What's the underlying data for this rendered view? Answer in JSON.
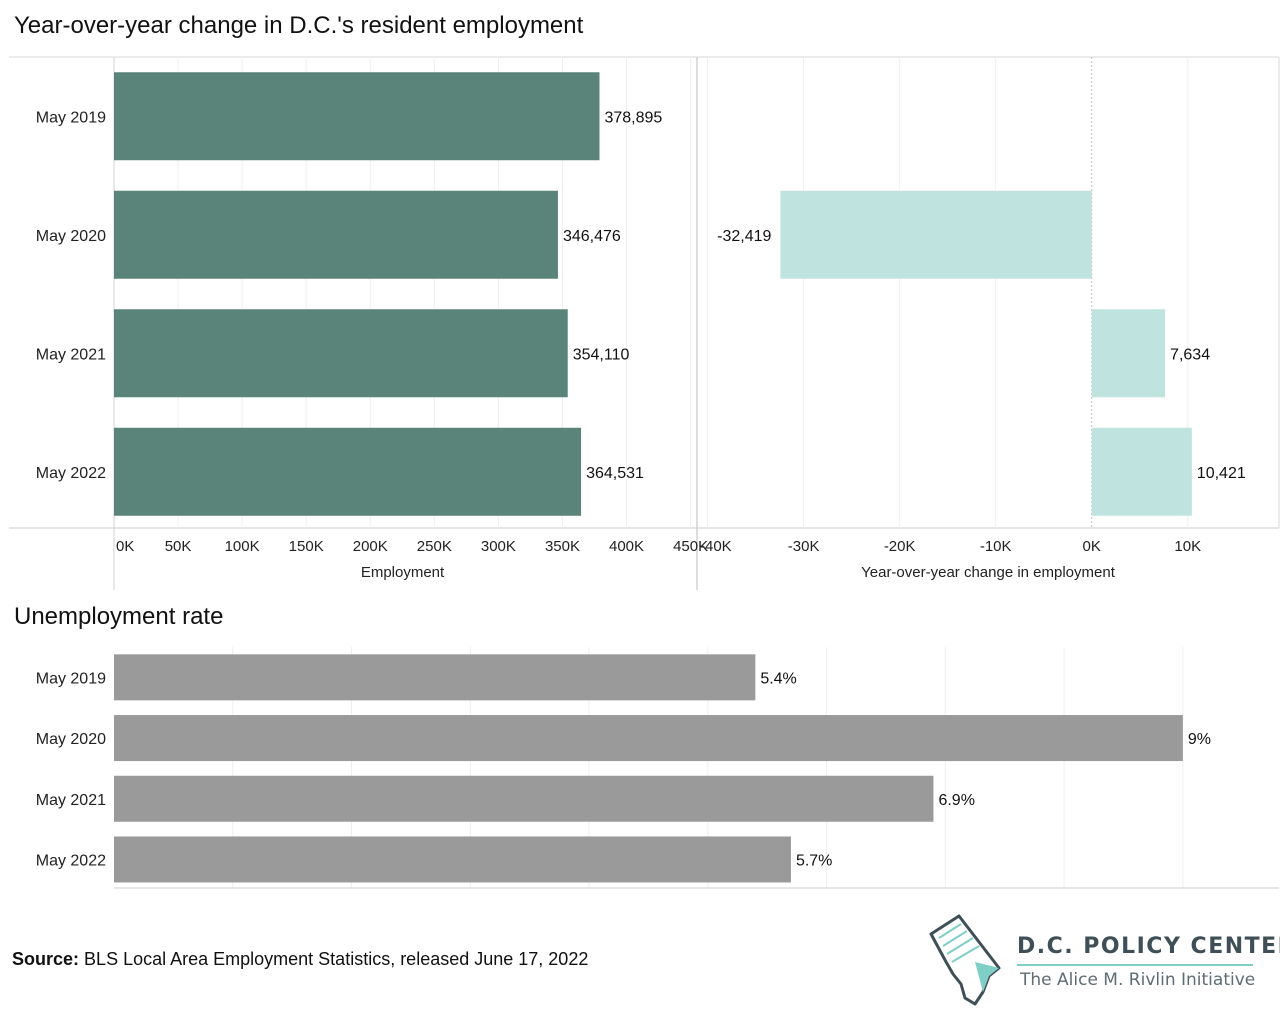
{
  "titles": {
    "employment": "Year-over-year change in D.C.'s resident employment",
    "unemployment": "Unemployment rate"
  },
  "chart_data": [
    {
      "type": "bar",
      "orientation": "horizontal",
      "categories": [
        "May 2019",
        "May 2020",
        "May 2021",
        "May 2022"
      ],
      "values": [
        378895,
        346476,
        354110,
        364531
      ],
      "value_labels": [
        "378,895",
        "346,476",
        "354,110",
        "364,531"
      ],
      "xlabel": "Employment",
      "xlim": [
        0,
        455000
      ],
      "ticks": [
        0,
        50000,
        100000,
        150000,
        200000,
        250000,
        300000,
        350000,
        400000,
        450000
      ],
      "tick_labels": [
        "0K",
        "50K",
        "100K",
        "150K",
        "200K",
        "250K",
        "300K",
        "350K",
        "400K",
        "450K"
      ],
      "color": "#5a8479",
      "grid": true
    },
    {
      "type": "bar",
      "orientation": "horizontal",
      "categories": [
        "May 2019",
        "May 2020",
        "May 2021",
        "May 2022"
      ],
      "values": [
        null,
        -32419,
        7634,
        10421
      ],
      "value_labels": [
        "",
        "-32,419",
        "7,634",
        "10,421"
      ],
      "xlabel": "Year-over-year change in employment",
      "xlim": [
        -41000,
        19500
      ],
      "ticks": [
        -40000,
        -30000,
        -20000,
        -10000,
        0,
        10000
      ],
      "tick_labels": [
        "-40K",
        "-30K",
        "-20K",
        "-10K",
        "0K",
        "10K"
      ],
      "color": "#bfe3df",
      "grid": true
    },
    {
      "type": "bar",
      "orientation": "horizontal",
      "categories": [
        "May 2019",
        "May 2020",
        "May 2021",
        "May 2022"
      ],
      "values": [
        5.4,
        9.0,
        6.9,
        5.7
      ],
      "value_labels": [
        "5.4%",
        "9%",
        "6.9%",
        "5.7%"
      ],
      "xlim": [
        0,
        9.7
      ],
      "color": "#9a9a9a",
      "grid": true
    }
  ],
  "source": {
    "label": "Source:",
    "text": "BLS Local Area Employment Statistics, released June 17, 2022"
  },
  "logo": {
    "name": "D.C. POLICY CENTER",
    "subtitle": "The Alice M. Rivlin Initiative"
  }
}
